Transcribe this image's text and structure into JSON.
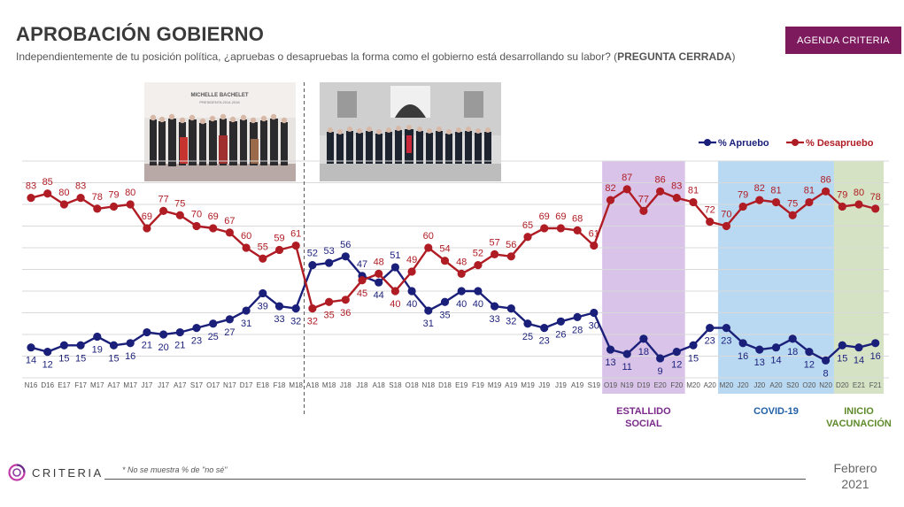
{
  "header": {
    "title": "APROBACIÓN GOBIERNO",
    "subtitle_main": "Independientemente de tu posición política, ¿apruebas o desapruebas la forma como el gobierno está desarrollando su labor? (",
    "subtitle_bold": "PREGUNTA CERRADA",
    "subtitle_end": ")"
  },
  "badge": {
    "label": "AGENDA CRITERIA"
  },
  "photos": {
    "left_banner_line1": "MICHELLE BACHELET",
    "left_banner_line2": "PRESIDENTA 2014-2018"
  },
  "footer": {
    "note": "* No se muestra % de \"no sé\"",
    "brand": "CRITERIA",
    "date_line1": "Febrero",
    "date_line2": "2021"
  },
  "colors": {
    "aprueba": "#1a1f7a",
    "desaprueba": "#b01c24",
    "estallido_bg": "#d9c3e8",
    "covid_bg": "#b9d9f2",
    "vacunacion_bg": "#d5e3c4",
    "estallido_text": "#7a2a8a",
    "covid_text": "#1f5fa8",
    "vacunacion_text": "#5e8a2a"
  },
  "chart_data": {
    "type": "line",
    "title": "APROBACIÓN GOBIERNO",
    "categories": [
      "N16",
      "D16",
      "E17",
      "F17",
      "M17",
      "A17",
      "M17",
      "J17",
      "J17",
      "A17",
      "S17",
      "O17",
      "N17",
      "D17",
      "E18",
      "F18",
      "M18",
      "A18",
      "M18",
      "J18",
      "J18",
      "A18",
      "S18",
      "O18",
      "N18",
      "D18",
      "E19",
      "F19",
      "M19",
      "A19",
      "M19",
      "J19",
      "J19",
      "A19",
      "S19",
      "O19",
      "N19",
      "D19",
      "E20",
      "F20",
      "M20",
      "A20",
      "M20",
      "J20",
      "J20",
      "A20",
      "S20",
      "O20",
      "N20",
      "D20",
      "E21",
      "F21"
    ],
    "series": [
      {
        "name": "% Apruebo",
        "values": [
          14,
          12,
          15,
          15,
          19,
          15,
          16,
          21,
          20,
          21,
          23,
          25,
          27,
          31,
          39,
          33,
          32,
          52,
          53,
          56,
          47,
          44,
          51,
          40,
          31,
          35,
          40,
          40,
          33,
          32,
          25,
          23,
          26,
          28,
          30,
          13,
          11,
          18,
          9,
          12,
          15,
          23,
          23,
          16,
          13,
          14,
          18,
          12,
          8,
          15,
          14,
          16
        ]
      },
      {
        "name": "% Desapruebo",
        "values": [
          83,
          85,
          80,
          83,
          78,
          79,
          80,
          69,
          77,
          75,
          70,
          69,
          67,
          60,
          55,
          59,
          61,
          32,
          35,
          36,
          45,
          48,
          40,
          49,
          60,
          54,
          48,
          52,
          57,
          56,
          65,
          69,
          69,
          68,
          61,
          82,
          87,
          77,
          86,
          83,
          81,
          72,
          70,
          79,
          82,
          81,
          75,
          81,
          86,
          79,
          80,
          78
        ]
      }
    ],
    "legend": [
      "% Apruebo",
      "% Desapruebo"
    ],
    "legend_position": "top-right",
    "ylim": [
      0,
      100
    ],
    "grid": true,
    "annotations": [
      {
        "label": "ESTALLIDO SOCIAL",
        "line1": "ESTALLIDO",
        "line2": "SOCIAL",
        "from": "O19",
        "to": "F20"
      },
      {
        "label": "COVID-19",
        "line1": "COVID-19",
        "line2": "",
        "from": "M20",
        "to": "N20"
      },
      {
        "label": "INICIO VACUNACIÓN",
        "line1": "INICIO",
        "line2": "VACUNACIÓN",
        "from": "D20",
        "to": "F21"
      }
    ]
  }
}
